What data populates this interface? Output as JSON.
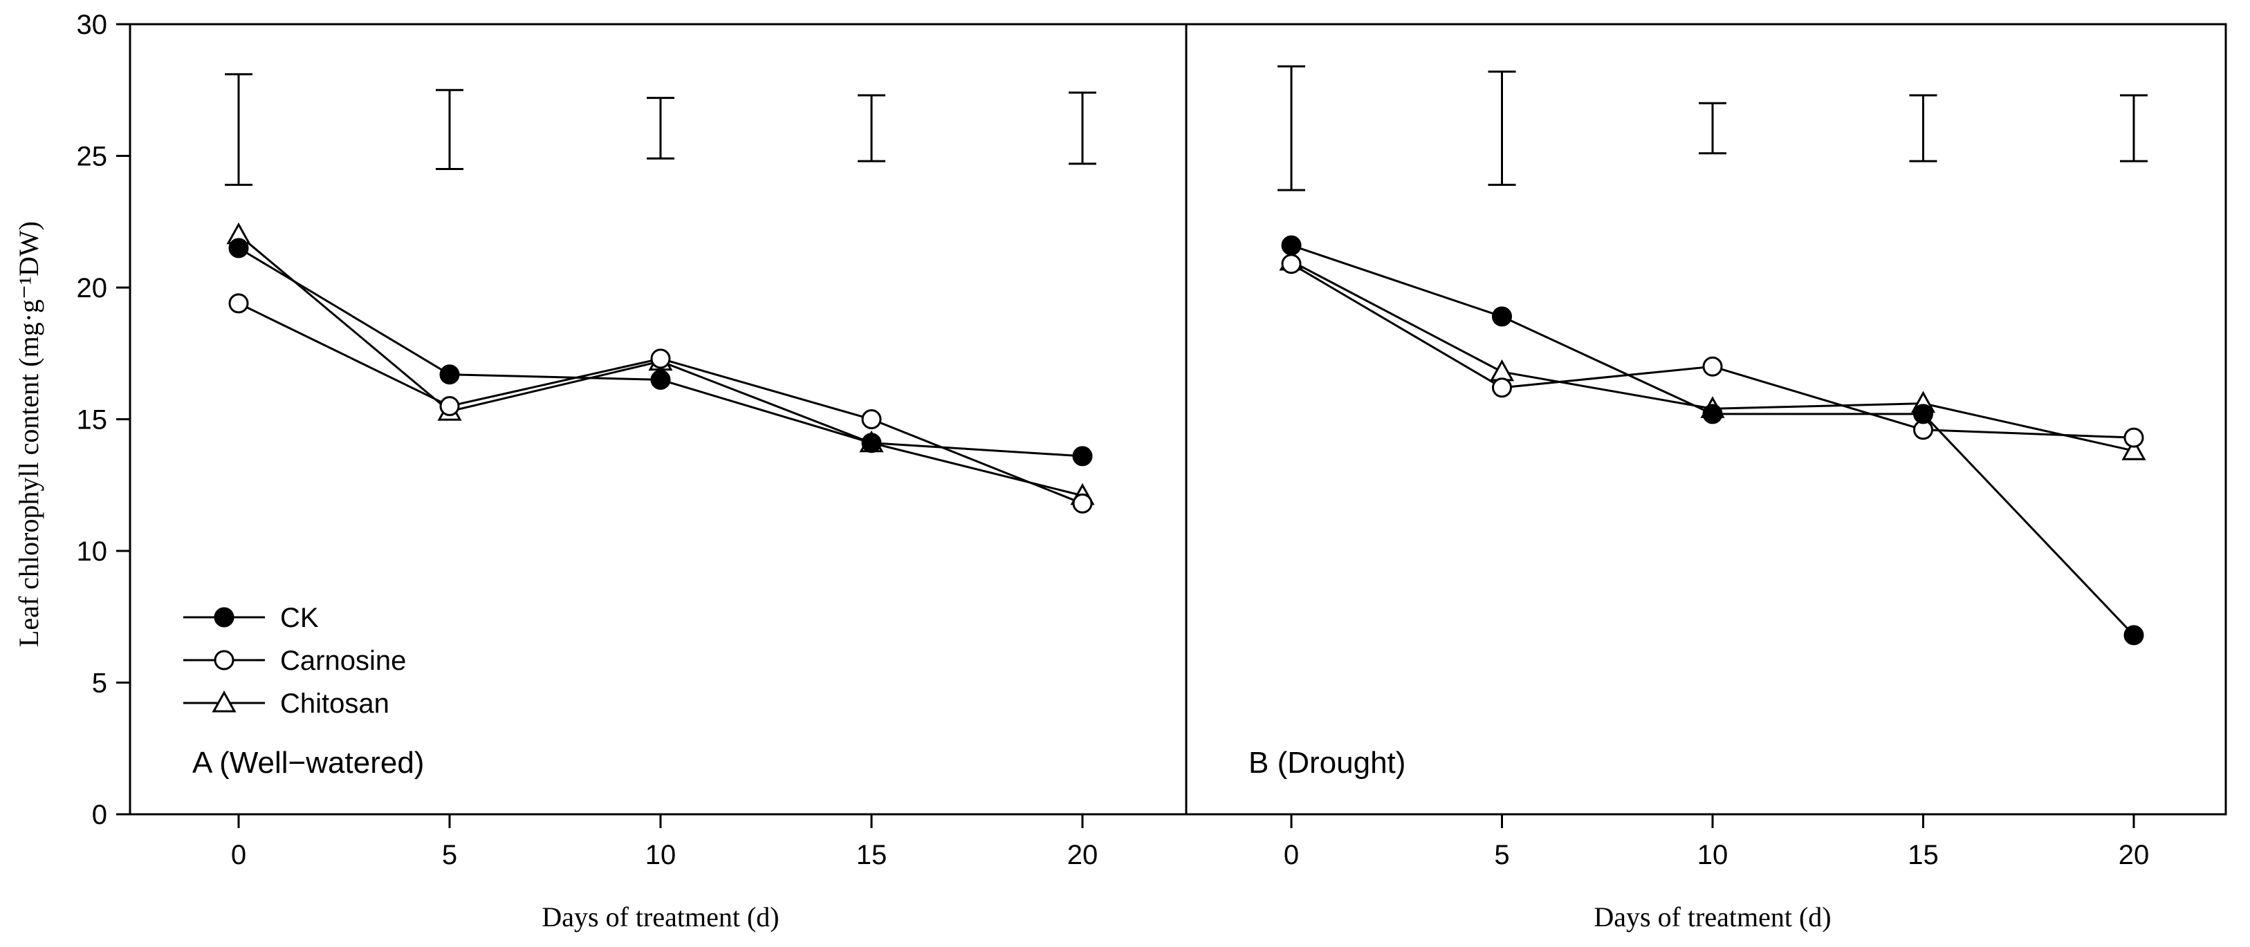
{
  "chart_data": {
    "type": "line",
    "ylabel": "Leaf chlorophyll content (mg·g⁻¹DW)",
    "ylim": [
      0,
      30
    ],
    "yticks": [
      0,
      5,
      10,
      15,
      20,
      25,
      30
    ],
    "xticks": [
      0,
      5,
      10,
      15,
      20
    ],
    "legend": {
      "position": "lower-left of panel A",
      "entries": [
        "CK",
        "Carnosine",
        "Chitosan"
      ]
    },
    "panels": [
      {
        "label": "A (Well−watered)",
        "xlabel": "Days of treatment (d)",
        "x": [
          0,
          5,
          10,
          15,
          20
        ],
        "series": [
          {
            "name": "CK",
            "marker": "filled-circle",
            "values": [
              21.5,
              16.7,
              16.5,
              14.1,
              13.6
            ]
          },
          {
            "name": "Carnosine",
            "marker": "open-circle",
            "values": [
              19.4,
              15.5,
              17.3,
              15.0,
              11.8
            ]
          },
          {
            "name": "Chitosan",
            "marker": "open-triangle",
            "values": [
              22.0,
              15.3,
              17.2,
              14.1,
              12.1
            ]
          }
        ],
        "error_bars": [
          {
            "x": 0,
            "low": 23.9,
            "high": 28.1
          },
          {
            "x": 5,
            "low": 24.5,
            "high": 27.5
          },
          {
            "x": 10,
            "low": 24.9,
            "high": 27.2
          },
          {
            "x": 15,
            "low": 24.8,
            "high": 27.3
          },
          {
            "x": 20,
            "low": 24.7,
            "high": 27.4
          }
        ]
      },
      {
        "label": "B (Drought)",
        "xlabel": "Days of treatment (d)",
        "x": [
          0,
          5,
          10,
          15,
          20
        ],
        "series": [
          {
            "name": "CK",
            "marker": "filled-circle",
            "values": [
              21.6,
              18.9,
              15.2,
              15.2,
              6.8
            ]
          },
          {
            "name": "Carnosine",
            "marker": "open-circle",
            "values": [
              20.9,
              16.2,
              17.0,
              14.6,
              14.3
            ]
          },
          {
            "name": "Chitosan",
            "marker": "open-triangle",
            "values": [
              21.0,
              16.8,
              15.4,
              15.6,
              13.8
            ]
          }
        ],
        "error_bars": [
          {
            "x": 0,
            "low": 23.7,
            "high": 28.4
          },
          {
            "x": 5,
            "low": 23.9,
            "high": 28.2
          },
          {
            "x": 10,
            "low": 25.1,
            "high": 27.0
          },
          {
            "x": 15,
            "low": 24.8,
            "high": 27.3
          },
          {
            "x": 20,
            "low": 24.8,
            "high": 27.3
          }
        ]
      }
    ]
  }
}
